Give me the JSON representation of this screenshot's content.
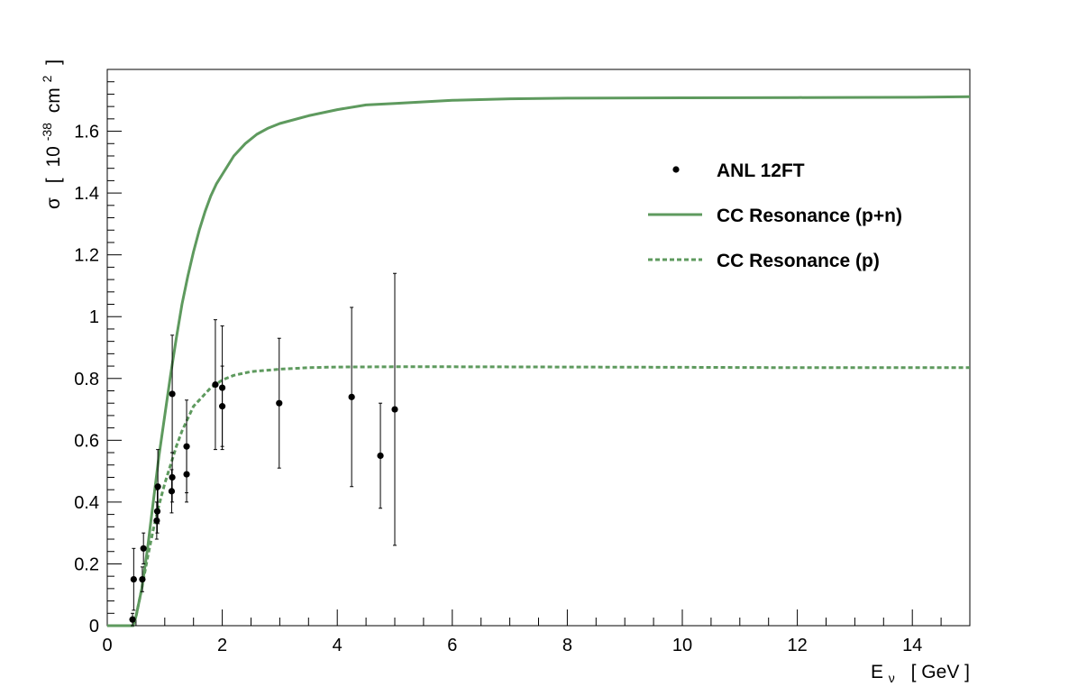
{
  "chart_data": {
    "type": "scatter",
    "title": "",
    "xlabel": {
      "main": "E",
      "sub": "ν",
      "unit": "[ GeV ]"
    },
    "ylabel": {
      "main": "σ",
      "open": "[",
      "base": "10",
      "exp": "-38",
      "unit": "cm",
      "unit_exp": "2",
      "close": "]"
    },
    "xlim": [
      0,
      15
    ],
    "ylim": [
      0,
      1.8
    ],
    "xticks": [
      "0",
      "2",
      "4",
      "6",
      "8",
      "10",
      "12",
      "14"
    ],
    "yticks": [
      "0",
      "0.2",
      "0.4",
      "0.6",
      "0.8",
      "1",
      "1.2",
      "1.4",
      "1.6"
    ],
    "grid": false,
    "legend_position": "top-right",
    "legend": [
      {
        "label": "ANL 12FT",
        "style": "marker"
      },
      {
        "label": "CC Resonance (p+n)",
        "style": "solid"
      },
      {
        "label": "CC Resonance (p)",
        "style": "dashed"
      }
    ],
    "colors": {
      "curve": "#5e9a5e",
      "points": "#000000"
    },
    "series": [
      {
        "name": "ANL 12FT",
        "kind": "points",
        "points": [
          {
            "x": 0.44,
            "y": 0.02,
            "err": 0.02
          },
          {
            "x": 0.46,
            "y": 0.15,
            "err": 0.1
          },
          {
            "x": 0.61,
            "y": 0.15,
            "err": 0.04
          },
          {
            "x": 0.63,
            "y": 0.25,
            "err": 0.05
          },
          {
            "x": 0.86,
            "y": 0.34,
            "err": 0.06
          },
          {
            "x": 0.87,
            "y": 0.37,
            "err": 0.07
          },
          {
            "x": 0.88,
            "y": 0.45,
            "err": 0.12
          },
          {
            "x": 1.12,
            "y": 0.435,
            "err": 0.07
          },
          {
            "x": 1.13,
            "y": 0.48,
            "err": 0.08
          },
          {
            "x": 1.13,
            "y": 0.75,
            "err": 0.19
          },
          {
            "x": 1.38,
            "y": 0.49,
            "err": 0.09
          },
          {
            "x": 1.38,
            "y": 0.58,
            "err": 0.15
          },
          {
            "x": 1.88,
            "y": 0.78,
            "err": 0.21
          },
          {
            "x": 2.0,
            "y": 0.71,
            "err": 0.13
          },
          {
            "x": 2.0,
            "y": 0.77,
            "err": 0.2
          },
          {
            "x": 2.99,
            "y": 0.72,
            "err": 0.21
          },
          {
            "x": 4.25,
            "y": 0.74,
            "err": 0.29
          },
          {
            "x": 4.75,
            "y": 0.55,
            "err": 0.17
          },
          {
            "x": 5.0,
            "y": 0.7,
            "err": 0.44
          }
        ]
      },
      {
        "name": "CC Resonance (p+n)",
        "kind": "line",
        "dash": "solid",
        "x": [
          0,
          0.3,
          0.45,
          0.5,
          0.6,
          0.7,
          0.8,
          0.9,
          1.0,
          1.1,
          1.2,
          1.3,
          1.4,
          1.5,
          1.6,
          1.7,
          1.8,
          1.9,
          2.0,
          2.2,
          2.4,
          2.6,
          2.8,
          3.0,
          3.5,
          4.0,
          4.5,
          5.0,
          6.0,
          7.0,
          8.0,
          10.0,
          12.0,
          14.0,
          15.0
        ],
        "y": [
          0,
          0,
          0.0,
          0.03,
          0.12,
          0.25,
          0.4,
          0.55,
          0.68,
          0.81,
          0.93,
          1.04,
          1.13,
          1.21,
          1.28,
          1.34,
          1.39,
          1.43,
          1.46,
          1.52,
          1.56,
          1.59,
          1.61,
          1.625,
          1.65,
          1.67,
          1.685,
          1.69,
          1.7,
          1.705,
          1.707,
          1.708,
          1.709,
          1.71,
          1.712
        ]
      },
      {
        "name": "CC Resonance (p)",
        "kind": "line",
        "dash": "dashed",
        "x": [
          0,
          0.3,
          0.45,
          0.5,
          0.6,
          0.7,
          0.8,
          0.9,
          1.0,
          1.1,
          1.2,
          1.3,
          1.4,
          1.5,
          1.6,
          1.7,
          1.8,
          2.0,
          2.2,
          2.5,
          3.0,
          3.5,
          4.0,
          5.0,
          6.0,
          8.0,
          10.0,
          12.0,
          15.0
        ],
        "y": [
          0,
          0,
          0.0,
          0.03,
          0.12,
          0.22,
          0.31,
          0.39,
          0.46,
          0.52,
          0.58,
          0.63,
          0.67,
          0.71,
          0.73,
          0.75,
          0.77,
          0.795,
          0.81,
          0.822,
          0.83,
          0.835,
          0.837,
          0.838,
          0.838,
          0.837,
          0.836,
          0.835,
          0.835
        ]
      }
    ]
  }
}
